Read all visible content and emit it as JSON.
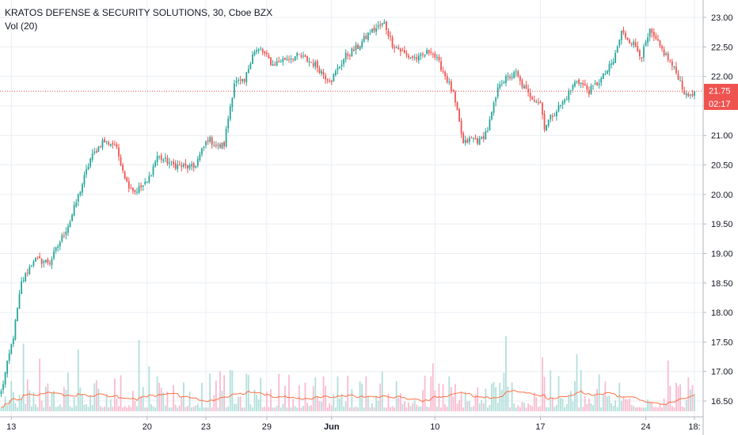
{
  "header": {
    "title": "KRATOS DEFENSE & SECURITY SOLUTIONS, 30, Cboe BZX",
    "volume_label": "Vol (20)"
  },
  "price_labels": {
    "last_price": "21.75",
    "countdown": "02:17"
  },
  "colors": {
    "up": "#26a69a",
    "down": "#ef5350",
    "up_volume": "#b2dfdb",
    "down_volume": "#f8bbd0",
    "volume_ma": "#ff7043",
    "grid": "#e9eef3",
    "last_price_line": "#ef5350"
  },
  "chart_data": {
    "type": "candlestick",
    "title": "KRATOS DEFENSE & SECURITY SOLUTIONS, 30, Cboe BZX",
    "y_ticks": [
      "16.50",
      "17.00",
      "17.50",
      "18.00",
      "18.50",
      "19.00",
      "19.50",
      "20.00",
      "20.50",
      "21.00",
      "21.50",
      "22.00",
      "22.50",
      "23.00"
    ],
    "x_ticks": [
      {
        "label": "13",
        "bar": 5
      },
      {
        "label": "20",
        "bar": 72
      },
      {
        "label": "23",
        "bar": 101
      },
      {
        "label": "29",
        "bar": 131
      },
      {
        "label": "Jun",
        "bar": 163,
        "bold": true
      },
      {
        "label": "10",
        "bar": 214
      },
      {
        "label": "17",
        "bar": 266
      },
      {
        "label": "24",
        "bar": 318
      },
      {
        "label": "18:",
        "bar": 342
      }
    ],
    "ylim": [
      16.4,
      23.15
    ],
    "bar_count": 343,
    "last_price": 21.75,
    "grid": true,
    "anchors_close": [
      [
        0,
        16.65
      ],
      [
        6,
        17.6
      ],
      [
        10,
        18.5
      ],
      [
        16,
        18.9
      ],
      [
        24,
        18.85
      ],
      [
        34,
        19.55
      ],
      [
        44,
        20.6
      ],
      [
        50,
        20.9
      ],
      [
        56,
        20.85
      ],
      [
        59,
        20.55
      ],
      [
        62,
        20.2
      ],
      [
        66,
        20.05
      ],
      [
        72,
        20.2
      ],
      [
        77,
        20.65
      ],
      [
        85,
        20.5
      ],
      [
        95,
        20.45
      ],
      [
        102,
        20.95
      ],
      [
        107,
        20.8
      ],
      [
        110,
        20.85
      ],
      [
        112,
        21.3
      ],
      [
        115,
        21.9
      ],
      [
        120,
        21.9
      ],
      [
        124,
        22.4
      ],
      [
        128,
        22.45
      ],
      [
        134,
        22.2
      ],
      [
        140,
        22.3
      ],
      [
        147,
        22.35
      ],
      [
        155,
        22.2
      ],
      [
        160,
        22.0
      ],
      [
        163,
        21.95
      ],
      [
        170,
        22.35
      ],
      [
        176,
        22.5
      ],
      [
        182,
        22.75
      ],
      [
        189,
        22.9
      ],
      [
        193,
        22.55
      ],
      [
        200,
        22.35
      ],
      [
        206,
        22.3
      ],
      [
        212,
        22.45
      ],
      [
        218,
        22.1
      ],
      [
        223,
        21.7
      ],
      [
        226,
        21.2
      ],
      [
        228,
        20.85
      ],
      [
        232,
        20.95
      ],
      [
        236,
        20.9
      ],
      [
        240,
        21.1
      ],
      [
        246,
        21.9
      ],
      [
        254,
        22.05
      ],
      [
        256,
        21.9
      ],
      [
        260,
        21.7
      ],
      [
        266,
        21.55
      ],
      [
        268,
        21.15
      ],
      [
        272,
        21.35
      ],
      [
        278,
        21.6
      ],
      [
        284,
        21.95
      ],
      [
        290,
        21.75
      ],
      [
        296,
        21.95
      ],
      [
        302,
        22.25
      ],
      [
        306,
        22.75
      ],
      [
        312,
        22.55
      ],
      [
        316,
        22.35
      ],
      [
        320,
        22.75
      ],
      [
        324,
        22.55
      ],
      [
        329,
        22.3
      ],
      [
        334,
        22.0
      ],
      [
        338,
        21.65
      ],
      [
        342,
        21.75
      ]
    ],
    "volume_ma_level": 0.28
  }
}
